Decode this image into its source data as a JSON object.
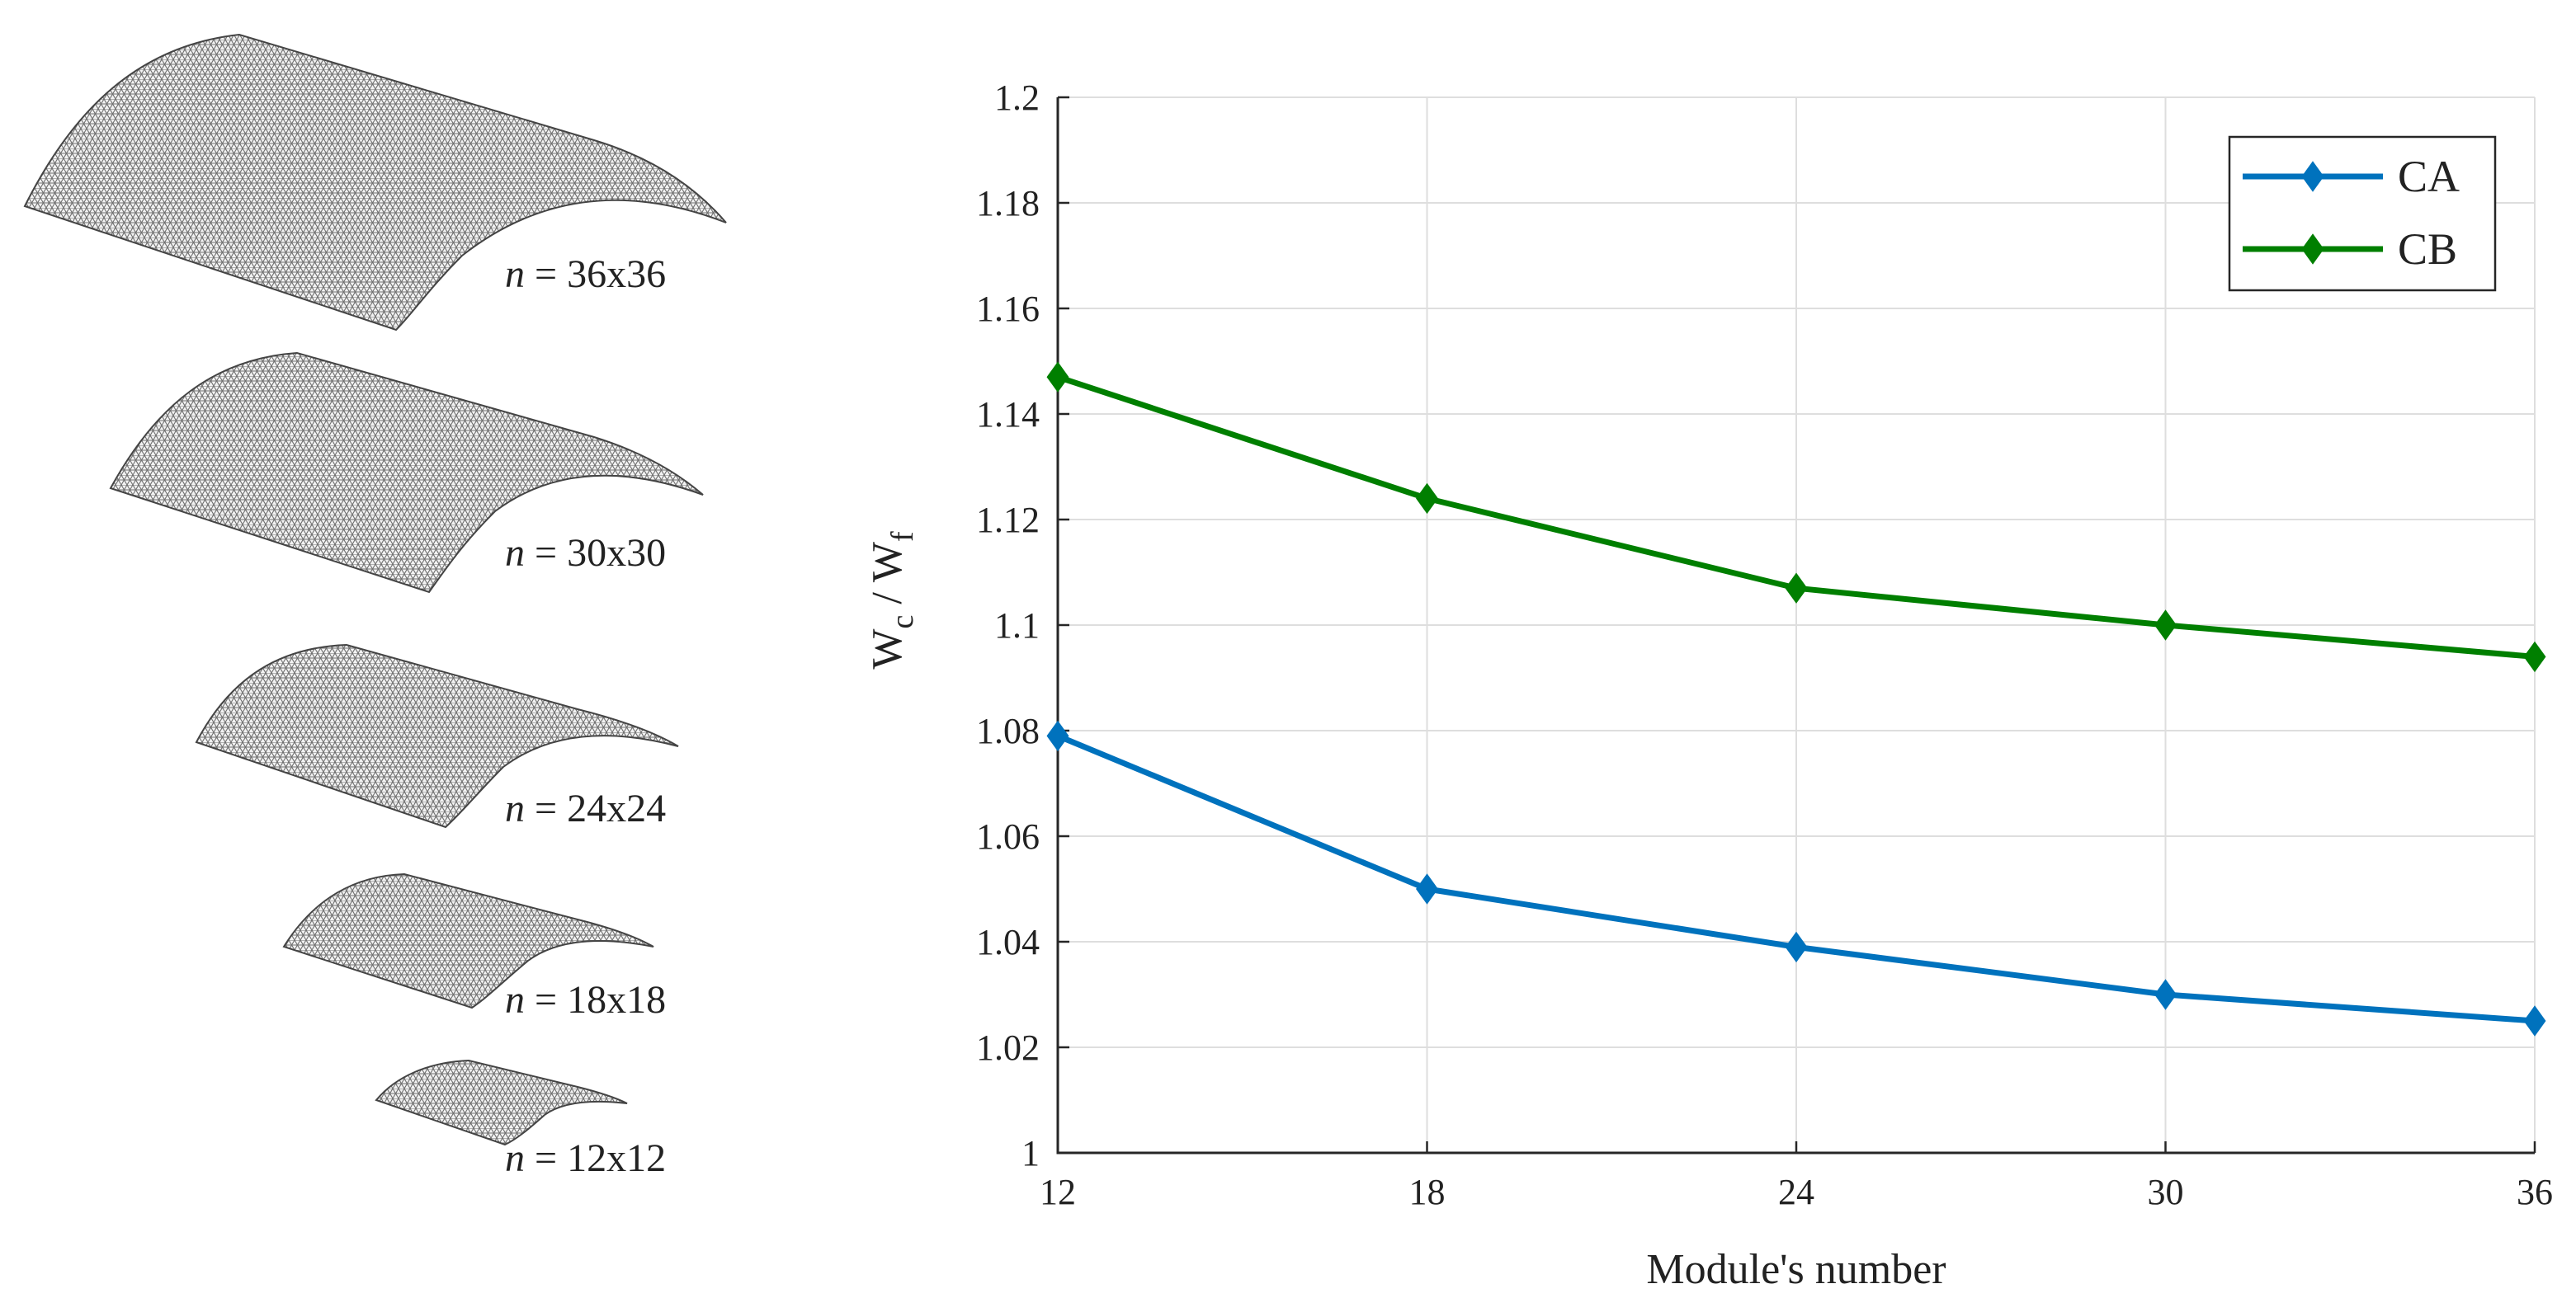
{
  "meshes": [
    {
      "n_label": "n",
      "eq": " = ",
      "size_label": "36x36"
    },
    {
      "n_label": "n",
      "eq": " = ",
      "size_label": "30x30"
    },
    {
      "n_label": "n",
      "eq": " = ",
      "size_label": "24x24"
    },
    {
      "n_label": "n",
      "eq": " = ",
      "size_label": "18x18"
    },
    {
      "n_label": "n",
      "eq": " = ",
      "size_label": "12x12"
    }
  ],
  "chart_data": {
    "type": "line",
    "title": "",
    "xlabel": "Module's number",
    "ylabel_main": "W",
    "ylabel_sub_c": "c",
    "ylabel_slash": " / ",
    "ylabel_sub_f": "f",
    "x": [
      12,
      18,
      24,
      30,
      36
    ],
    "x_ticks": [
      "12",
      "18",
      "24",
      "30",
      "36"
    ],
    "y_ticks": [
      "1",
      "1.02",
      "1.04",
      "1.06",
      "1.08",
      "1.1",
      "1.12",
      "1.14",
      "1.16",
      "1.18",
      "1.2"
    ],
    "xlim": [
      12,
      36
    ],
    "ylim": [
      1,
      1.2
    ],
    "grid": true,
    "legend_position": "top-right",
    "series": [
      {
        "name": "CA",
        "color": "#0072BD",
        "marker": "diamond",
        "values": [
          1.079,
          1.05,
          1.039,
          1.03,
          1.025
        ]
      },
      {
        "name": "CB",
        "color": "#007F00",
        "marker": "diamond",
        "values": [
          1.147,
          1.124,
          1.107,
          1.1,
          1.094
        ]
      }
    ]
  }
}
